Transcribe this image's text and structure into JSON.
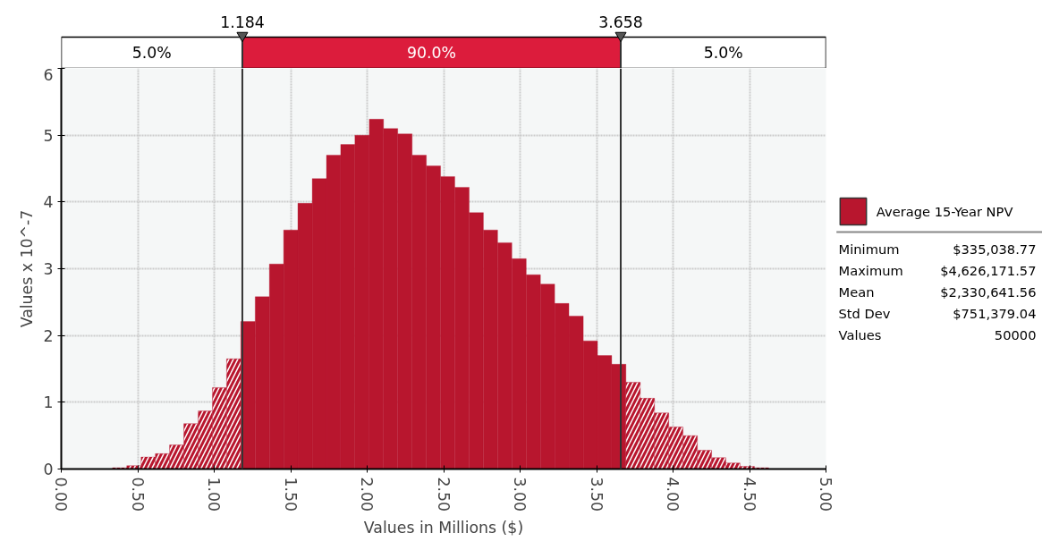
{
  "chart_data": {
    "type": "histogram",
    "xlabel": "Values in Millions ($)",
    "ylabel": "Values x 10^-7",
    "bins": [
      0.335,
      0.428,
      0.522,
      0.615,
      0.708,
      0.801,
      0.895,
      0.988,
      1.081,
      1.174,
      1.268,
      1.361,
      1.454,
      1.547,
      1.641,
      1.734,
      1.827,
      1.92,
      2.014,
      2.107,
      2.2,
      2.294,
      2.387,
      2.48,
      2.573,
      2.667,
      2.76,
      2.853,
      2.946,
      3.04,
      3.133,
      3.226,
      3.319,
      3.413,
      3.506,
      3.599,
      3.692,
      3.786,
      3.879,
      3.972,
      4.065,
      4.159,
      4.252,
      4.345,
      4.438,
      4.532,
      4.626
    ],
    "series": [
      {
        "name": "Average 15-Year NPV",
        "color": "#b8162e",
        "values": [
          0.02,
          0.05,
          0.18,
          0.23,
          0.36,
          0.68,
          0.87,
          1.22,
          1.65,
          2.21,
          2.58,
          3.07,
          3.58,
          3.98,
          4.35,
          4.7,
          4.86,
          5.0,
          5.24,
          5.1,
          5.02,
          4.7,
          4.54,
          4.38,
          4.22,
          3.84,
          3.58,
          3.39,
          3.15,
          2.91,
          2.77,
          2.48,
          2.29,
          1.92,
          1.7,
          1.57,
          1.3,
          1.06,
          0.84,
          0.63,
          0.5,
          0.28,
          0.17,
          0.09,
          0.04,
          0.02
        ]
      }
    ],
    "xlim": [
      0,
      5
    ],
    "ylim": [
      0,
      6
    ],
    "xticks": [
      {
        "value": 0,
        "label": "0.00"
      },
      {
        "value": 0.5,
        "label": "0.50"
      },
      {
        "value": 1,
        "label": "1.00"
      },
      {
        "value": 1.5,
        "label": "1.50"
      },
      {
        "value": 2,
        "label": "2.00"
      },
      {
        "value": 2.5,
        "label": "2.50"
      },
      {
        "value": 3,
        "label": "3.00"
      },
      {
        "value": 3.5,
        "label": "3.50"
      },
      {
        "value": 4,
        "label": "4.00"
      },
      {
        "value": 4.5,
        "label": "4.50"
      },
      {
        "value": 5,
        "label": "5.00"
      }
    ],
    "yticks": [
      0,
      1,
      2,
      3,
      4,
      5,
      6
    ],
    "ref_lines": [
      {
        "axis": "x",
        "value": 1.184,
        "label": "1.184"
      },
      {
        "axis": "x",
        "value": 3.658,
        "label": "3.658"
      }
    ],
    "annotations": [
      "5.0%",
      "90.0%",
      "5.0%",
      "Minimum $335,038.77",
      "Maximum $4,626,171.57",
      "Mean $2,330,641.56",
      "Std Dev $751,379.04",
      "Values 50000"
    ],
    "grid": true,
    "legend": "right"
  }
}
